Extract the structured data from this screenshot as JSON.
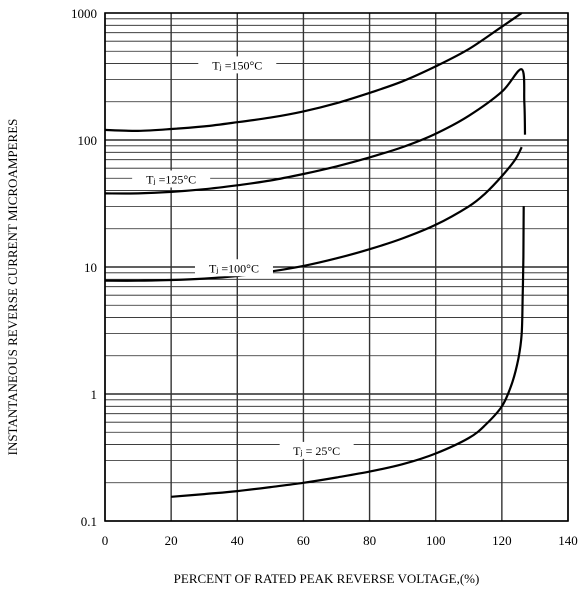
{
  "chart_data": {
    "type": "line",
    "title": "",
    "xlabel": "PERCENT OF RATED PEAK REVERSE VOLTAGE,(%)",
    "ylabel": "INSTANTANEOUS REVERSE CURRENT MICROAMPERES",
    "xlim": [
      0,
      140
    ],
    "ylim": [
      0.1,
      1000
    ],
    "yscale": "log",
    "grid": true,
    "x_ticks": [
      0,
      20,
      40,
      60,
      80,
      100,
      120,
      140
    ],
    "x_tick_labels": [
      "0",
      "20",
      "40",
      "60",
      "80",
      "100",
      "120",
      "140"
    ],
    "y_ticks": [
      0.1,
      1,
      10,
      100,
      1000
    ],
    "y_tick_labels": [
      "0.1",
      "1",
      "10",
      "100",
      "1000"
    ],
    "series": [
      {
        "name": "Tⱼ =150°C",
        "x": [
          0,
          10,
          20,
          30,
          40,
          50,
          60,
          70,
          80,
          90,
          100,
          110,
          120,
          126
        ],
        "y": [
          120,
          118,
          122,
          128,
          138,
          150,
          168,
          195,
          235,
          290,
          380,
          520,
          780,
          1000
        ]
      },
      {
        "name": "Tⱼ =125°C",
        "x": [
          0,
          10,
          20,
          30,
          40,
          50,
          60,
          70,
          80,
          90,
          100,
          110,
          120,
          126,
          126.8,
          127
        ],
        "y": [
          38,
          38,
          39,
          41,
          44,
          48,
          54,
          62,
          73,
          88,
          112,
          155,
          240,
          360,
          200,
          110
        ]
      },
      {
        "name": "Tⱼ =100°C",
        "x": [
          0,
          10,
          20,
          30,
          40,
          50,
          60,
          70,
          80,
          90,
          100,
          110,
          115,
          120,
          124,
          126
        ],
        "y": [
          7.8,
          7.8,
          7.9,
          8.1,
          8.5,
          9.2,
          10.2,
          11.7,
          13.8,
          16.8,
          21.5,
          30,
          38,
          52,
          70,
          88
        ]
      },
      {
        "name": "Tⱼ = 25°C",
        "x": [
          20,
          30,
          40,
          50,
          60,
          70,
          80,
          90,
          100,
          110,
          115,
          120,
          123,
          125,
          126,
          126.3,
          126.5,
          126.6
        ],
        "y": [
          0.155,
          0.163,
          0.172,
          0.185,
          0.2,
          0.22,
          0.245,
          0.28,
          0.34,
          0.45,
          0.57,
          0.8,
          1.2,
          1.9,
          3,
          6,
          12,
          30
        ]
      }
    ]
  }
}
